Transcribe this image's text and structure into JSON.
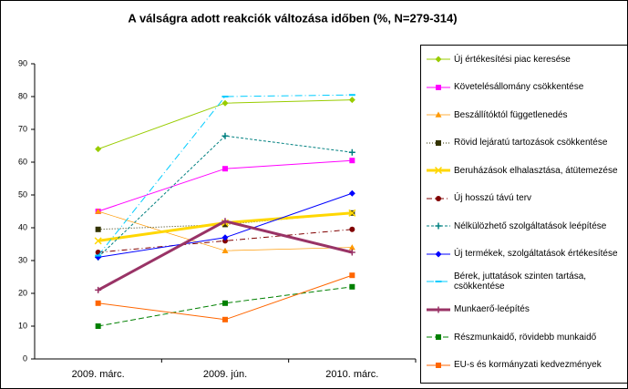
{
  "chart_data": {
    "type": "line",
    "title": "A válságra adott reakciók változása időben (%, N=279-314)",
    "categories": [
      "2009. márc.",
      "2009. jún.",
      "2010. márc."
    ],
    "ylim": [
      0,
      90
    ],
    "yticks": [
      0,
      10,
      20,
      30,
      40,
      50,
      60,
      70,
      80,
      90
    ],
    "grid": false,
    "legend": "right",
    "series": [
      {
        "name": "Új értékesítési piac keresése",
        "color": "#99cc00",
        "width": 1,
        "dash": "",
        "marker": "diamond",
        "values": [
          64,
          78,
          79
        ]
      },
      {
        "name": "Követelésállomány csökkentése",
        "color": "#ff00ff",
        "width": 1,
        "dash": "",
        "marker": "square",
        "values": [
          45,
          58,
          60.5
        ]
      },
      {
        "name": "Beszállítóktól függetlenedés",
        "color": "#ff9900",
        "width": 0.7,
        "dash": "",
        "marker": "triangle",
        "values": [
          45,
          33,
          34
        ]
      },
      {
        "name": "Rövid lejáratú tartozások csökkentése",
        "color": "#333300",
        "width": 1,
        "dash": "1 2",
        "marker": "square",
        "values": [
          39.5,
          41,
          44.5
        ]
      },
      {
        "name": "Beruházások elhalasztása, átütemezése",
        "color": "#ffd700",
        "width": 3,
        "dash": "",
        "marker": "x",
        "values": [
          36,
          41.5,
          44.5
        ]
      },
      {
        "name": "Új hosszú távú terv",
        "color": "#800000",
        "width": 1,
        "dash": "6 3 1 3",
        "marker": "circle",
        "values": [
          32.5,
          36,
          39.5
        ]
      },
      {
        "name": "Nélkülözhető szolgáltatások leépítése",
        "color": "#008080",
        "width": 1,
        "dash": "3 2",
        "marker": "plus",
        "values": [
          31,
          68,
          63
        ]
      },
      {
        "name": "Új termékek, szolgáltatások értékesítése",
        "color": "#0000ff",
        "width": 1,
        "dash": "",
        "marker": "diamond",
        "values": [
          31,
          37,
          50.5
        ]
      },
      {
        "name": "Bérek, juttatások szinten tartása, csökkentése",
        "color": "#00ccff",
        "width": 1,
        "dash": "8 3 1 3",
        "marker": "dash",
        "values": [
          31.5,
          80,
          80.5
        ]
      },
      {
        "name": "Munkaerő-leépítés",
        "color": "#993366",
        "width": 3,
        "dash": "",
        "marker": "plus",
        "values": [
          21,
          42,
          32.5
        ]
      },
      {
        "name": "Részmunkaidő, rövidebb munkaidő",
        "color": "#008000",
        "width": 1,
        "dash": "6 3",
        "marker": "square",
        "values": [
          10,
          17,
          22
        ]
      },
      {
        "name": "EU-s és kormányzati kedvezmények",
        "color": "#ff6600",
        "width": 1,
        "dash": "",
        "marker": "square",
        "values": [
          17,
          12,
          25.5
        ]
      }
    ]
  }
}
